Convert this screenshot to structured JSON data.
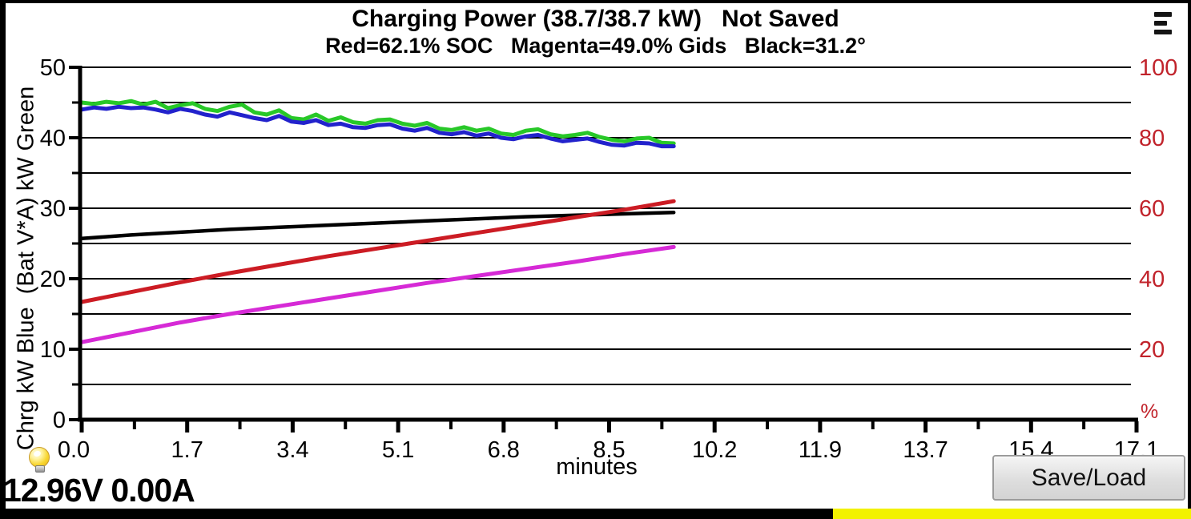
{
  "header": {
    "title": "Charging Power (38.7/38.7 kW)   Not Saved",
    "subtitle": "Red=62.1% SOC   Magenta=49.0% Gids   Black=31.2°",
    "menu_icon": "hamburger-icon"
  },
  "chart_data": {
    "type": "line",
    "title": "Charging Power (38.7/38.7 kW)   Not Saved",
    "subtitle": "Red=62.1% SOC   Magenta=49.0% Gids   Black=31.2°",
    "xlabel": "minutes",
    "x_range": [
      0,
      17.55
    ],
    "x_tick_labels": [
      "0.0",
      "1.7",
      "3.4",
      "5.1",
      "6.8",
      "8.5",
      "10.2",
      "11.9",
      "13.7",
      "15.4",
      "17.1"
    ],
    "grid": true,
    "gridline_values": [
      5,
      10,
      15,
      20,
      25,
      30,
      35,
      40,
      45,
      50
    ],
    "left_axis": {
      "label": "Chrg kW Blue  (Bat V*A) kW Green",
      "range": [
        0,
        50
      ],
      "major_ticks": [
        0,
        10,
        20,
        30,
        40,
        50
      ],
      "minor_ticks": [
        5,
        15,
        25,
        35,
        45
      ]
    },
    "right_axis": {
      "tick_labels": [
        "100",
        "80",
        "60",
        "40",
        "20"
      ],
      "tick_values": [
        100,
        80,
        60,
        40,
        20
      ],
      "unit_label": "%",
      "range": [
        0,
        100
      ],
      "color": "#c1232b"
    },
    "units_note": "series points are [minutes, value on left 0-50 axis]; right-axis % = 2 x left value",
    "series": [
      {
        "name": "(Bat V*A) kW",
        "legend_color_word": "Green",
        "color": "#28c828",
        "width": 5,
        "points": [
          [
            0,
            45.0
          ],
          [
            0.2,
            44.8
          ],
          [
            0.4,
            45.1
          ],
          [
            0.6,
            44.9
          ],
          [
            0.8,
            45.2
          ],
          [
            1.0,
            44.7
          ],
          [
            1.2,
            45.1
          ],
          [
            1.4,
            44.2
          ],
          [
            1.6,
            44.6
          ],
          [
            1.8,
            44.9
          ],
          [
            2.0,
            44.1
          ],
          [
            2.2,
            43.8
          ],
          [
            2.4,
            44.4
          ],
          [
            2.6,
            44.7
          ],
          [
            2.8,
            43.6
          ],
          [
            3.0,
            43.3
          ],
          [
            3.2,
            43.9
          ],
          [
            3.4,
            42.8
          ],
          [
            3.6,
            42.6
          ],
          [
            3.8,
            43.3
          ],
          [
            4.0,
            42.4
          ],
          [
            4.2,
            42.9
          ],
          [
            4.4,
            42.2
          ],
          [
            4.6,
            42.0
          ],
          [
            4.8,
            42.5
          ],
          [
            5.0,
            42.6
          ],
          [
            5.2,
            42.0
          ],
          [
            5.4,
            41.7
          ],
          [
            5.6,
            42.1
          ],
          [
            5.8,
            41.3
          ],
          [
            6.0,
            41.1
          ],
          [
            6.2,
            41.5
          ],
          [
            6.4,
            41.0
          ],
          [
            6.6,
            41.3
          ],
          [
            6.8,
            40.6
          ],
          [
            7.0,
            40.4
          ],
          [
            7.2,
            41.0
          ],
          [
            7.4,
            41.2
          ],
          [
            7.6,
            40.5
          ],
          [
            7.8,
            40.2
          ],
          [
            8.0,
            40.4
          ],
          [
            8.2,
            40.7
          ],
          [
            8.4,
            40.1
          ],
          [
            8.6,
            39.7
          ],
          [
            8.8,
            39.5
          ],
          [
            9.0,
            39.9
          ],
          [
            9.2,
            40.0
          ],
          [
            9.4,
            39.3
          ],
          [
            9.6,
            39.2
          ]
        ]
      },
      {
        "name": "Chrg kW",
        "legend_color_word": "Blue",
        "color": "#2222cc",
        "width": 5,
        "points": [
          [
            0,
            44.0
          ],
          [
            0.2,
            44.3
          ],
          [
            0.4,
            44.1
          ],
          [
            0.6,
            44.4
          ],
          [
            0.8,
            44.2
          ],
          [
            1.0,
            44.3
          ],
          [
            1.2,
            44.0
          ],
          [
            1.4,
            43.6
          ],
          [
            1.6,
            44.1
          ],
          [
            1.8,
            43.8
          ],
          [
            2.0,
            43.3
          ],
          [
            2.2,
            43.0
          ],
          [
            2.4,
            43.6
          ],
          [
            2.6,
            43.2
          ],
          [
            2.8,
            42.8
          ],
          [
            3.0,
            42.5
          ],
          [
            3.2,
            43.1
          ],
          [
            3.4,
            42.3
          ],
          [
            3.6,
            42.1
          ],
          [
            3.8,
            42.5
          ],
          [
            4.0,
            41.8
          ],
          [
            4.2,
            42.0
          ],
          [
            4.4,
            41.5
          ],
          [
            4.6,
            41.4
          ],
          [
            4.8,
            41.8
          ],
          [
            5.0,
            41.9
          ],
          [
            5.2,
            41.3
          ],
          [
            5.4,
            41.0
          ],
          [
            5.6,
            41.4
          ],
          [
            5.8,
            40.7
          ],
          [
            6.0,
            40.5
          ],
          [
            6.2,
            40.8
          ],
          [
            6.4,
            40.3
          ],
          [
            6.6,
            40.6
          ],
          [
            6.8,
            40.0
          ],
          [
            7.0,
            39.8
          ],
          [
            7.2,
            40.2
          ],
          [
            7.4,
            40.4
          ],
          [
            7.6,
            39.9
          ],
          [
            7.8,
            39.5
          ],
          [
            8.0,
            39.7
          ],
          [
            8.2,
            39.9
          ],
          [
            8.4,
            39.4
          ],
          [
            8.6,
            39.0
          ],
          [
            8.8,
            38.9
          ],
          [
            9.0,
            39.3
          ],
          [
            9.2,
            39.2
          ],
          [
            9.4,
            38.8
          ],
          [
            9.6,
            38.8
          ]
        ]
      },
      {
        "name": "Temperature 31.2°",
        "legend_color_word": "Black",
        "color": "#000000",
        "width": 4.5,
        "points": [
          [
            0,
            25.7
          ],
          [
            0.8,
            26.2
          ],
          [
            1.6,
            26.6
          ],
          [
            2.4,
            27.0
          ],
          [
            3.2,
            27.3
          ],
          [
            4.0,
            27.6
          ],
          [
            4.8,
            27.9
          ],
          [
            5.6,
            28.2
          ],
          [
            6.4,
            28.5
          ],
          [
            7.2,
            28.8
          ],
          [
            8.0,
            29.0
          ],
          [
            8.8,
            29.2
          ],
          [
            9.6,
            29.4
          ]
        ]
      },
      {
        "name": "SOC 62.1%",
        "legend_color_word": "Red",
        "color": "#cc1c24",
        "width": 5,
        "points": [
          [
            0,
            16.7
          ],
          [
            0.8,
            18.1
          ],
          [
            1.6,
            19.5
          ],
          [
            2.4,
            20.8
          ],
          [
            3.2,
            22.0
          ],
          [
            4.0,
            23.2
          ],
          [
            4.8,
            24.3
          ],
          [
            5.6,
            25.4
          ],
          [
            6.4,
            26.5
          ],
          [
            7.2,
            27.6
          ],
          [
            8.0,
            28.7
          ],
          [
            8.8,
            29.8
          ],
          [
            9.6,
            31.0
          ]
        ]
      },
      {
        "name": "Gids 49.0%",
        "legend_color_word": "Magenta",
        "color": "#d62ad6",
        "width": 5,
        "points": [
          [
            0,
            11.0
          ],
          [
            0.8,
            12.4
          ],
          [
            1.6,
            13.8
          ],
          [
            2.4,
            15.0
          ],
          [
            3.2,
            16.1
          ],
          [
            4.0,
            17.2
          ],
          [
            4.8,
            18.3
          ],
          [
            5.6,
            19.4
          ],
          [
            6.4,
            20.4
          ],
          [
            7.2,
            21.4
          ],
          [
            8.0,
            22.4
          ],
          [
            8.8,
            23.5
          ],
          [
            9.6,
            24.5
          ]
        ]
      }
    ]
  },
  "footer": {
    "voltage_reading": "12.96V 0.00A",
    "bulb_icon": "lightbulb-icon",
    "save_load_label": "Save/Load"
  },
  "colors": {
    "right_axis_red": "#c1232b",
    "bottom_bar_yellow": "#f2f200",
    "bottom_bar_black": "#000000",
    "screen_background": "#ffffff",
    "frame": "#000000"
  }
}
